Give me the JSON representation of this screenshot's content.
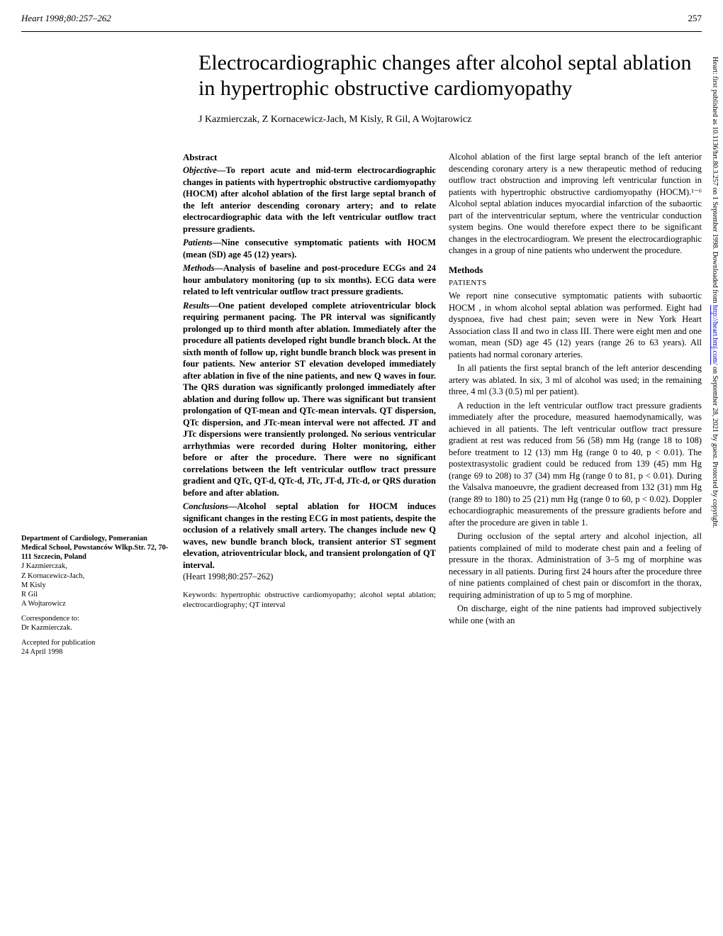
{
  "header": {
    "journal": "Heart 1998;80:257–262",
    "page": "257"
  },
  "title": "Electrocardiographic changes after alcohol septal ablation in hypertrophic obstructive cardiomyopathy",
  "authors": "J Kazmierczak, Z Kornacewicz-Jach, M Kisly, R Gil, A Wojtarowicz",
  "affiliation": {
    "dept": "Department of Cardiology, Pomeranian Medical School, Powstanców Wlkp.Str. 72, 70-111 Szczecin, Poland",
    "names": "J Kazmierczak,\nZ Kornacewicz-Jach,\nM Kisly\nR Gil\nA Wojtarowicz",
    "correspondence": "Correspondence to:\nDr Kazmierczak.",
    "accepted": "Accepted for publication\n24 April 1998"
  },
  "abstract": {
    "head": "Abstract",
    "objective_label": "Objective—",
    "objective": "To report acute and mid-term electrocardiographic changes in patients with hypertrophic obstructive cardiomyopathy (HOCM) after alcohol ablation of the first large septal branch of the left anterior descending coronary artery; and to relate electrocardiographic data with the left ventricular outflow tract pressure gradients.",
    "patients_label": "Patients—",
    "patients": "Nine consecutive symptomatic patients with HOCM (mean (SD) age 45 (12) years).",
    "methods_label": "Methods—",
    "methods": "Analysis of baseline and post-procedure ECGs and 24 hour ambulatory monitoring (up to six months). ECG data were related to left ventricular outflow tract pressure gradients.",
    "results_label": "Results—",
    "results": "One patient developed complete atrioventricular block requiring permanent pacing. The PR interval was significantly prolonged up to third month after ablation. Immediately after the procedure all patients developed right bundle branch block. At the sixth month of follow up, right bundle branch block was present in four patients. New anterior ST elevation developed immediately after ablation in five of the nine patients, and new Q waves in four. The QRS duration was significantly prolonged immediately after ablation and during follow up. There was significant but transient prolongation of QT-mean and QTc-mean intervals. QT dispersion, QTc dispersion, and JTc-mean interval were not affected. JT and JTc dispersions were transiently prolonged. No serious ventricular arrhythmias were recorded during Holter monitoring, either before or after the procedure. There were no significant correlations between the left ventricular outflow tract pressure gradient and QTc, QT-d, QTc-d, JTc, JT-d, JTc-d, or QRS duration before and after ablation.",
    "conclusions_label": "Conclusions—",
    "conclusions": "Alcohol septal ablation for HOCM induces significant changes in the resting ECG in most patients, despite the occlusion of a relatively small artery. The changes include new Q waves, new bundle branch block, transient anterior ST segment elevation, atrioventricular block, and transient prolongation of QT interval.",
    "cite": "(Heart 1998;80:257–262)"
  },
  "keywords": "Keywords: hypertrophic obstructive cardiomyopathy; alcohol septal ablation; electrocardiography; QT interval",
  "body": {
    "intro": "Alcohol ablation of the first large septal branch of the left anterior descending coronary artery is a new therapeutic method of reducing outflow tract obstruction and improving left ventricular function in patients with hypertrophic obstructive cardiomyopathy (HOCM).¹⁻⁶ Alcohol septal ablation induces myocardial infarction of the subaortic part of the interventricular septum, where the ventricular conduction system begins. One would therefore expect there to be significant changes in the electrocardiogram. We present the electrocardiographic changes in a group of nine patients who underwent the procedure.",
    "methods_head": "Methods",
    "patients_sub": "PATIENTS",
    "p1": "We report nine consecutive symptomatic patients with subaortic HOCM , in whom alcohol septal ablation was performed. Eight had dyspnoea, five had chest pain; seven were in New York Heart Association class II and two in class III. There were eight men and one woman, mean (SD) age 45 (12) years (range 26 to 63 years). All patients had normal coronary arteries.",
    "p2": "In all patients the first septal branch of the left anterior descending artery was ablated. In six, 3 ml of alcohol was used; in the remaining three, 4 ml (3.3 (0.5) ml per patient).",
    "p3": "A reduction in the left ventricular outflow tract pressure gradients immediately after the procedure, measured haemodynamically, was achieved in all patients. The left ventricular outflow tract pressure gradient at rest was reduced from 56 (58) mm Hg (range 18 to 108) before treatment to 12 (13) mm Hg (range 0 to 40, p < 0.01). The postextrasystolic gradient could be reduced from 139 (45) mm Hg (range 69 to 208) to 37 (34) mm Hg (range 0 to 81, p < 0.01). During the Valsalva manoeuvre, the gradient decreased from 132 (31) mm Hg (range 89 to 180) to 25 (21) mm Hg (range 0 to 60, p < 0.02). Doppler echocardiographic measurements of the pressure gradients before and after the procedure are given in table 1.",
    "p4": "During occlusion of the septal artery and alcohol injection, all patients complained of mild to moderate chest pain and a feeling of pressure in the thorax. Administration of 3–5 mg of morphine was necessary in all patients. During first 24 hours after the procedure three of nine patients complained of chest pain or discomfort in the thorax, requiring administration of up to 5 mg of morphine.",
    "p5": "On discharge, eight of the nine patients had improved subjectively while one (with an"
  },
  "sidebar": {
    "text_before_link": "Heart: first published as 10.1136/hrt.80.3.257 on 1 September 1998. Downloaded from ",
    "link": "http://heart.bmj.com/",
    "text_after_link": " on September 28, 2021 by guest. Protected by copyright."
  },
  "colors": {
    "background": "#ffffff",
    "text": "#000000",
    "link": "#0000cc"
  }
}
